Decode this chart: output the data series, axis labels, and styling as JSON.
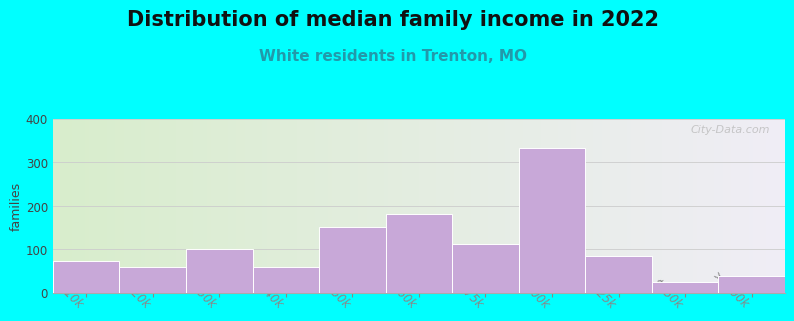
{
  "title": "Distribution of median family income in 2022",
  "subtitle": "White residents in Trenton, MO",
  "categories": [
    "$10k",
    "$20k",
    "$30k",
    "$40k",
    "$50k",
    "$60k",
    "$75k",
    "$100k",
    "$125k",
    "$150k",
    ">$200k"
  ],
  "values": [
    72,
    60,
    100,
    60,
    152,
    180,
    112,
    332,
    85,
    25,
    38
  ],
  "bar_color": "#c8a8d8",
  "bar_edge_color": "#ffffff",
  "ylim": [
    0,
    400
  ],
  "yticks": [
    0,
    100,
    200,
    300,
    400
  ],
  "ylabel": "families",
  "background_color": "#00ffff",
  "plot_bg_color_left": "#d8edcc",
  "plot_bg_color_right": "#f0eef6",
  "title_fontsize": 15,
  "subtitle_fontsize": 11,
  "subtitle_color": "#2299aa",
  "watermark": "City-Data.com",
  "xlabel_rotation": -45,
  "tick_label_fontsize": 8.5,
  "grid_color": "#cccccc",
  "gradient_split": 0.62
}
